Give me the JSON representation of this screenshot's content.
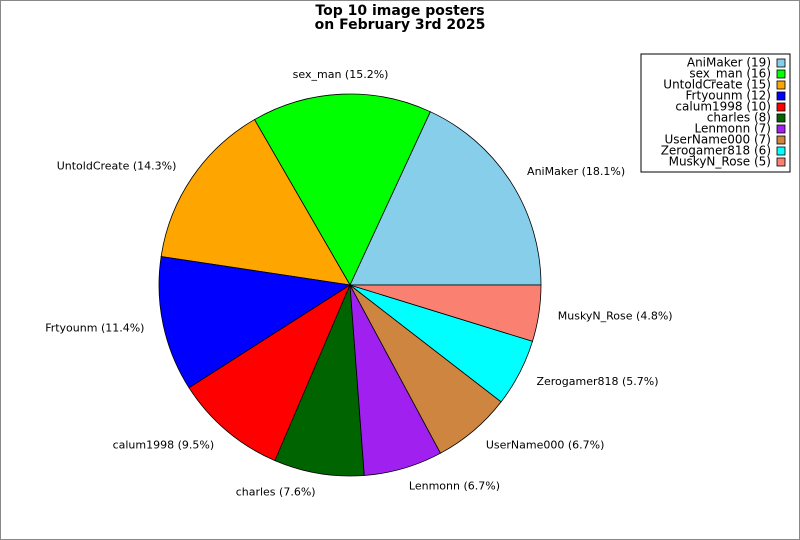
{
  "chart_data": {
    "type": "pie",
    "title": [
      "Top 10 image posters",
      "on February 3rd 2025"
    ],
    "categories": [
      "AniMaker",
      "sex_man",
      "UntoldCreate",
      "Frtyounm",
      "calum1998",
      "charles",
      "Lenmonn",
      "UserName000",
      "Zerogamer818",
      "MuskyN_Rose"
    ],
    "values": [
      19,
      16,
      15,
      12,
      10,
      8,
      7,
      7,
      6,
      5
    ],
    "slice_labels": [
      "AniMaker (18.1%)",
      "sex_man (15.2%)",
      "UntoldCreate (14.3%)",
      "Frtyounm (11.4%)",
      "calum1998 (9.5%)",
      "charles (7.6%)",
      "Lenmonn (6.7%)",
      "UserName000 (6.7%)",
      "Zerogamer818 (5.7%)",
      "MuskyN_Rose (4.8%)"
    ],
    "legend_labels": [
      "AniMaker (19)",
      "sex_man (16)",
      "UntoldCreate (15)",
      "Frtyounm (12)",
      "calum1998 (10)",
      "charles (8)",
      "Lenmonn (7)",
      "UserName000 (7)",
      "Zerogamer818 (6)",
      "MuskyN_Rose (5)"
    ],
    "colors": [
      "#87ceeb",
      "#00ff00",
      "#ffa500",
      "#0000ff",
      "#ff0000",
      "#006400",
      "#a020f0",
      "#cd853f",
      "#00ffff",
      "#fa8072"
    ],
    "legend": "upper right"
  }
}
